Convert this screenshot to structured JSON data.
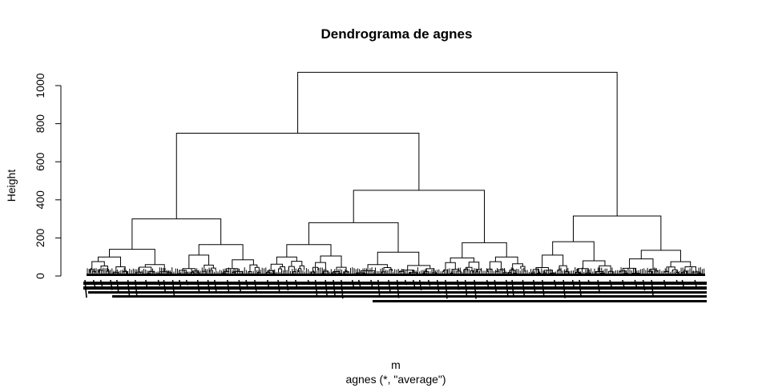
{
  "chart_data": {
    "type": "dendrogram",
    "title": "Dendrograma de agnes",
    "xlabel": "m",
    "sub_label": "agnes (*, \"average\")",
    "ylabel": "Height",
    "ylim": [
      0,
      1070
    ],
    "yticks": [
      0,
      200,
      400,
      600,
      800,
      1000
    ],
    "tick_labels": [
      "0",
      "200",
      "400",
      "600",
      "800",
      "1000"
    ],
    "grid": false,
    "leaf_labels_legible": false,
    "colors": {
      "lines": "#000000",
      "background": "#ffffff"
    },
    "merges": [
      {
        "name": "root",
        "height": 1070,
        "left": "A",
        "right": "B"
      },
      {
        "name": "A",
        "height": 750,
        "left": "A1",
        "right": "A2"
      },
      {
        "name": "A1",
        "height": 300,
        "left": "A1a",
        "right": "A1b"
      },
      {
        "name": "A1a",
        "height": 140,
        "left": "c1",
        "right": "c2"
      },
      {
        "name": "A1b",
        "height": 165,
        "left": "c3",
        "right": "c4"
      },
      {
        "name": "A2",
        "height": 450,
        "left": "A2a",
        "right": "A2b"
      },
      {
        "name": "A2a",
        "height": 280,
        "left": "A2a1",
        "right": "A2a2"
      },
      {
        "name": "A2a1",
        "height": 165,
        "left": "c5",
        "right": "c6"
      },
      {
        "name": "A2a2",
        "height": 125,
        "left": "c7",
        "right": "c8"
      },
      {
        "name": "A2b",
        "height": 175,
        "left": "c9",
        "right": "c10"
      },
      {
        "name": "B",
        "height": 315,
        "left": "B1",
        "right": "B2"
      },
      {
        "name": "B1",
        "height": 180,
        "left": "c11",
        "right": "c12"
      },
      {
        "name": "B2",
        "height": 135,
        "left": "c13",
        "right": "c14"
      }
    ],
    "clusters": [
      {
        "name": "c1",
        "height": 100
      },
      {
        "name": "c2",
        "height": 60
      },
      {
        "name": "c3",
        "height": 110
      },
      {
        "name": "c4",
        "height": 85
      },
      {
        "name": "c5",
        "height": 100
      },
      {
        "name": "c6",
        "height": 105
      },
      {
        "name": "c7",
        "height": 60
      },
      {
        "name": "c8",
        "height": 55
      },
      {
        "name": "c9",
        "height": 95
      },
      {
        "name": "c10",
        "height": 100
      },
      {
        "name": "c11",
        "height": 110
      },
      {
        "name": "c12",
        "height": 80
      },
      {
        "name": "c13",
        "height": 90
      },
      {
        "name": "c14",
        "height": 75
      }
    ]
  }
}
